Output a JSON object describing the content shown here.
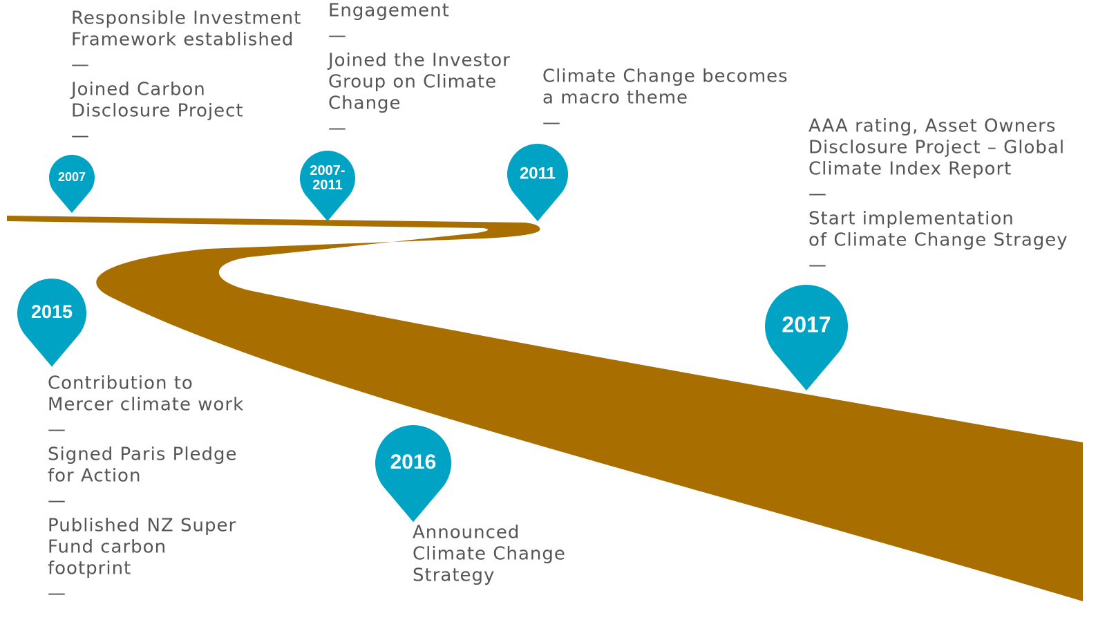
{
  "milestones": [
    {
      "year": [
        "2007"
      ],
      "text": [
        "Responsible Investment",
        "Framework established",
        "—",
        "Joined Carbon",
        "Disclosure Project",
        "—"
      ]
    },
    {
      "year": [
        "2007-",
        "2011"
      ],
      "text": [
        "Engagement",
        "—",
        "Joined the Investor",
        "Group on Climate",
        "Change",
        "—"
      ]
    },
    {
      "year": [
        "2011"
      ],
      "text": [
        "Climate Change becomes",
        "a macro theme",
        "—"
      ]
    },
    {
      "year": [
        "2017"
      ],
      "text": [
        "AAA rating, Asset Owners",
        "Disclosure Project – Global",
        "Climate Index Report",
        "—",
        "Start implementation",
        "of Climate Change Stragey",
        "—"
      ]
    },
    {
      "year": [
        "2015"
      ],
      "text": [
        "Contribution to",
        "Mercer climate work",
        "—",
        "Signed Paris Pledge",
        "for Action",
        "—",
        "Published NZ Super",
        "Fund carbon",
        "footprint",
        "—"
      ]
    },
    {
      "year": [
        "2016"
      ],
      "text": [
        "Announced",
        "Climate Change",
        "Strategy"
      ]
    }
  ]
}
